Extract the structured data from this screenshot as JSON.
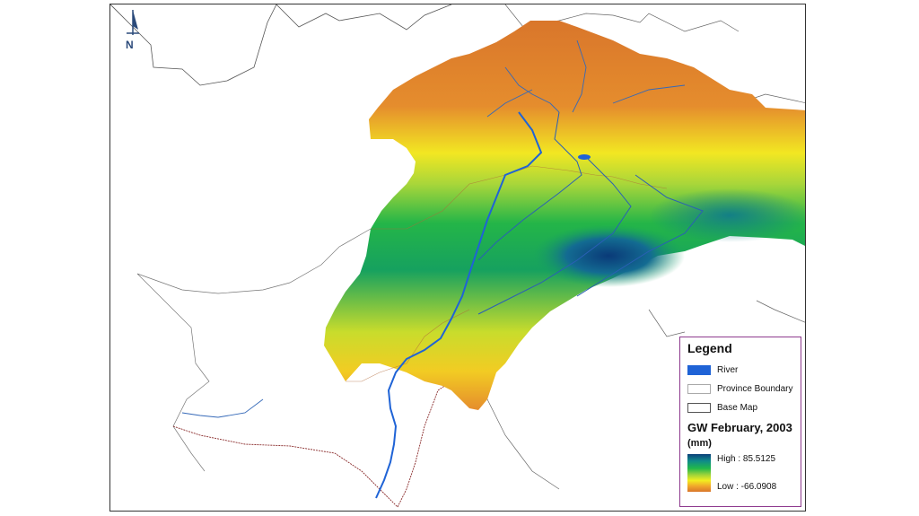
{
  "north_arrow": {
    "label": "N"
  },
  "legend": {
    "title": "Legend",
    "items": [
      {
        "label": "River",
        "color": "#1f63d6"
      },
      {
        "label": "Province Boundary",
        "color": "#b0b0b0"
      },
      {
        "label": "Base Map",
        "color": "#555555"
      }
    ],
    "layer_title": "GW February, 2003",
    "unit": "(mm)",
    "high_label": "High : 85.5125",
    "low_label": "Low : -66.0908",
    "ramp_colors": [
      "#0b3f7a",
      "#0f8a8a",
      "#22b84a",
      "#9fd33a",
      "#f2ee1f",
      "#f1a72b",
      "#d9762b"
    ]
  }
}
